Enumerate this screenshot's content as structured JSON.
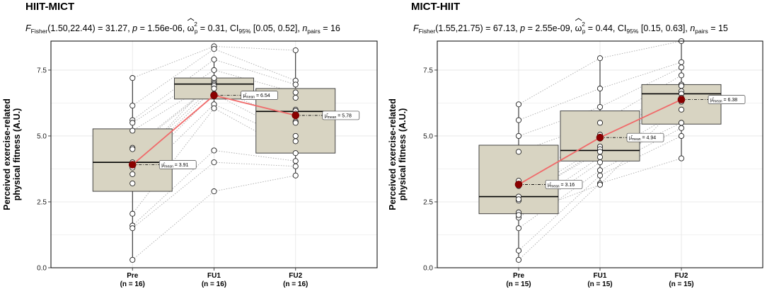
{
  "chart_data": [
    {
      "type": "boxplot",
      "title": "HIIT-MICT",
      "subtitle": {
        "stat_prefix": "F",
        "stat_sub": "Fisher",
        "dfs": "(1.50,22.44) = 31.27, ",
        "p_label": "p",
        "p_value": " = 1.56e-06, ",
        "effect_symbol": "ω",
        "effect_sup": "2",
        "effect_sub": "p",
        "effect_value": " = 0.31, CI",
        "ci_sub": "95%",
        "ci_value": " [0.05, 0.52], ",
        "n_label": "n",
        "n_sub": "pairs",
        "n_value": " = 16"
      },
      "ylabel_line1": "Perceived exercise-related",
      "ylabel_line2": "physical fitness (A.U.)",
      "ylim": [
        0,
        8.6
      ],
      "yticks": [
        0.0,
        2.5,
        5.0,
        7.5
      ],
      "ytick_labels": [
        "0.0",
        "2.5",
        "5.0",
        "7.5"
      ],
      "categories": [
        "Pre",
        "FU1",
        "FU2"
      ],
      "category_n": [
        "(n = 16)",
        "(n = 16)",
        "(n = 16)"
      ],
      "boxes": [
        {
          "q1": 2.9,
          "median": 4.0,
          "q3": 5.27,
          "lower": 0.3,
          "upper": 7.2
        },
        {
          "q1": 6.4,
          "median": 6.97,
          "q3": 7.2,
          "lower": 6.05,
          "upper": 7.8
        },
        {
          "q1": 4.35,
          "median": 5.93,
          "q3": 6.8,
          "lower": 3.5,
          "upper": 8.25
        }
      ],
      "means": [
        3.91,
        6.54,
        5.78
      ],
      "mean_labels": [
        "3.91",
        "6.54",
        "5.78"
      ],
      "mean_label_prefix": "μ̂",
      "mean_label_sub": "mean",
      "points": [
        [
          7.2,
          6.15,
          5.6,
          5.5,
          5.2,
          4.55,
          4.5,
          4.0,
          3.8,
          3.55,
          3.2,
          2.05,
          1.6,
          1.5,
          0.3,
          3.9
        ],
        [
          8.4,
          8.3,
          7.9,
          7.5,
          7.1,
          7.0,
          6.95,
          6.9,
          6.8,
          6.6,
          6.2,
          6.05,
          4.45,
          4.0,
          2.9,
          7.2
        ],
        [
          8.25,
          7.1,
          6.95,
          6.65,
          6.45,
          6.0,
          5.95,
          5.85,
          5.55,
          5.0,
          4.8,
          4.35,
          4.05,
          3.85,
          3.5,
          5.5
        ]
      ]
    },
    {
      "type": "boxplot",
      "title": "MICT-HIIT",
      "subtitle": {
        "stat_prefix": "F",
        "stat_sub": "Fisher",
        "dfs": "(1.55,21.75) = 67.13, ",
        "p_label": "p",
        "p_value": " = 2.55e-09, ",
        "effect_symbol": "ω",
        "effect_sup": "2",
        "effect_sub": "p",
        "effect_value": " = 0.44, CI",
        "ci_sub": "95%",
        "ci_value": " [0.15, 0.63], ",
        "n_label": "n",
        "n_sub": "pairs",
        "n_value": " = 15"
      },
      "ylabel_line1": "Perceived exercise-related",
      "ylabel_line2": "physical fitness (A.U.)",
      "ylim": [
        0,
        8.6
      ],
      "yticks": [
        0.0,
        2.5,
        5.0,
        7.5
      ],
      "ytick_labels": [
        "0.0",
        "2.5",
        "5.0",
        "7.5"
      ],
      "categories": [
        "Pre",
        "FU1",
        "FU2"
      ],
      "category_n": [
        "(n = 15)",
        "(n = 15)",
        "(n = 15)"
      ],
      "boxes": [
        {
          "q1": 2.05,
          "median": 2.7,
          "q3": 4.65,
          "lower": 0.3,
          "upper": 6.2
        },
        {
          "q1": 4.05,
          "median": 4.45,
          "q3": 5.95,
          "lower": 3.15,
          "upper": 7.95
        },
        {
          "q1": 5.45,
          "median": 6.6,
          "q3": 6.95,
          "lower": 4.15,
          "upper": 8.6
        }
      ],
      "means": [
        3.16,
        4.94,
        6.38
      ],
      "mean_labels": [
        "3.16",
        "4.94",
        "6.38"
      ],
      "mean_label_prefix": "μ̂",
      "mean_label_sub": "mean",
      "points": [
        [
          6.2,
          5.6,
          5.0,
          4.4,
          3.3,
          3.1,
          2.7,
          2.55,
          2.1,
          1.9,
          1.5,
          0.65,
          0.3,
          2.0,
          2.6
        ],
        [
          7.95,
          6.8,
          6.1,
          5.5,
          5.05,
          4.9,
          4.6,
          4.5,
          4.2,
          4.0,
          3.7,
          3.5,
          3.2,
          3.15,
          4.4
        ],
        [
          8.6,
          7.8,
          7.6,
          7.3,
          6.95,
          6.7,
          6.6,
          6.45,
          6.0,
          5.5,
          5.3,
          5.0,
          4.15,
          6.3,
          6.9
        ]
      ]
    }
  ],
  "colors": {
    "box_fill": "#d8d4c2",
    "panel_bg": "#ffffff",
    "grid": "#e4e4e4",
    "mean_line": "#f06a6a",
    "mean_point": "#8b0000",
    "pair_line": "#aaaaaa"
  }
}
